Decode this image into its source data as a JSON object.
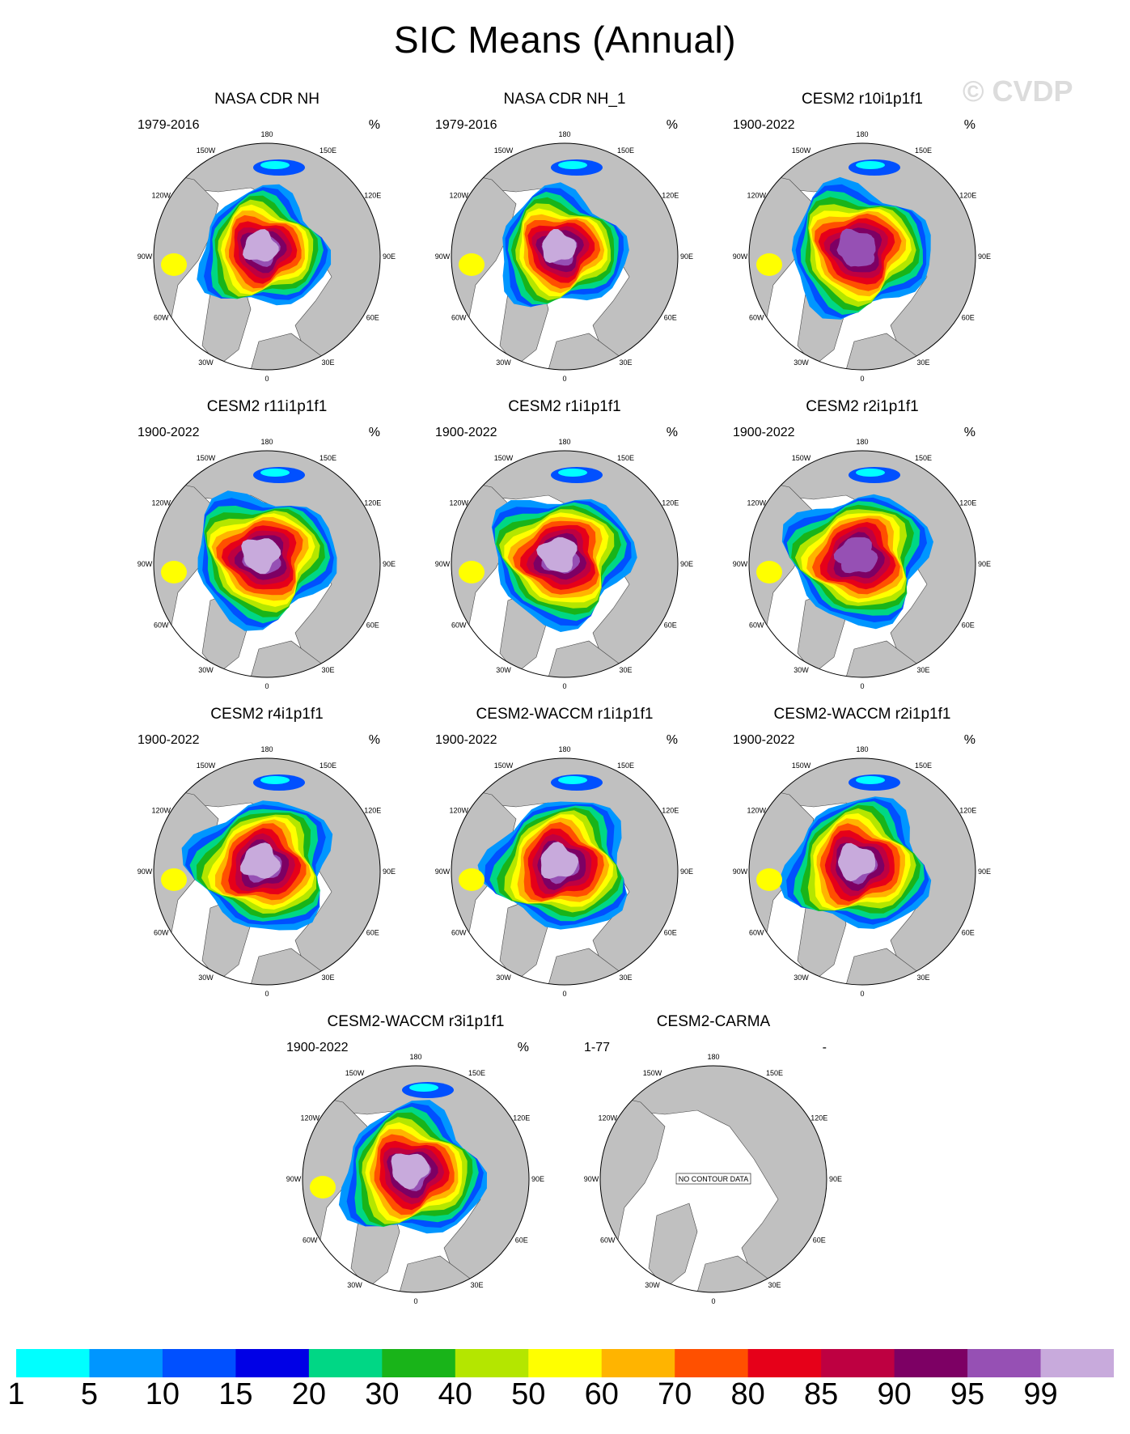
{
  "title": "SIC Means (Annual)",
  "watermark": "© CVDP",
  "lon_labels": [
    "180",
    "150E",
    "120E",
    "90E",
    "60E",
    "30E",
    "0",
    "30W",
    "60W",
    "90W",
    "120W",
    "150W"
  ],
  "panels": [
    {
      "title": "NASA CDR NH",
      "period": "1979-2016",
      "units": "%",
      "has_data": true,
      "ice_extent": 0.95,
      "pole_value": "99"
    },
    {
      "title": "NASA CDR NH_1",
      "period": "1979-2016",
      "units": "%",
      "has_data": true,
      "ice_extent": 0.95,
      "pole_value": "99"
    },
    {
      "title": "CESM2 r10i1p1f1",
      "period": "1900-2022",
      "units": "%",
      "has_data": true,
      "ice_extent": 1.05,
      "pole_value": "95"
    },
    {
      "title": "CESM2 r11i1p1f1",
      "period": "1900-2022",
      "units": "%",
      "has_data": true,
      "ice_extent": 1.05,
      "pole_value": "99"
    },
    {
      "title": "CESM2 r1i1p1f1",
      "period": "1900-2022",
      "units": "%",
      "has_data": true,
      "ice_extent": 1.05,
      "pole_value": "99"
    },
    {
      "title": "CESM2 r2i1p1f1",
      "period": "1900-2022",
      "units": "%",
      "has_data": true,
      "ice_extent": 1.05,
      "pole_value": "95"
    },
    {
      "title": "CESM2 r4i1p1f1",
      "period": "1900-2022",
      "units": "%",
      "has_data": true,
      "ice_extent": 1.05,
      "pole_value": "99"
    },
    {
      "title": "CESM2-WACCM r1i1p1f1",
      "period": "1900-2022",
      "units": "%",
      "has_data": true,
      "ice_extent": 1.05,
      "pole_value": "99"
    },
    {
      "title": "CESM2-WACCM r2i1p1f1",
      "period": "1900-2022",
      "units": "%",
      "has_data": true,
      "ice_extent": 1.05,
      "pole_value": "99"
    },
    {
      "title": "CESM2-WACCM r3i1p1f1",
      "period": "1900-2022",
      "units": "%",
      "has_data": true,
      "ice_extent": 1.05,
      "pole_value": "99"
    },
    {
      "title": "CESM2-CARMA",
      "period": "1-77",
      "units": "-",
      "has_data": false,
      "no_data_text": "NO CONTOUR DATA"
    }
  ],
  "colorbar": {
    "labels": [
      "1",
      "5",
      "10",
      "15",
      "20",
      "30",
      "40",
      "50",
      "60",
      "70",
      "80",
      "85",
      "90",
      "95",
      "99"
    ],
    "colors": [
      "#00ffff",
      "#0096ff",
      "#0050ff",
      "#0000e6",
      "#00d785",
      "#19b419",
      "#b4e600",
      "#ffff00",
      "#ffb400",
      "#ff5000",
      "#e60019",
      "#be0041",
      "#7d0064",
      "#9650b4",
      "#c8aadc"
    ]
  },
  "land_color": "#c0c0c0"
}
